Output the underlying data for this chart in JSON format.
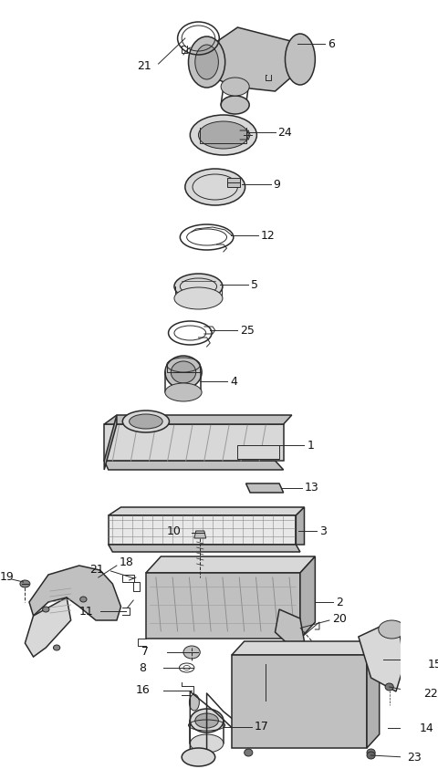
{
  "bg_color": "#ffffff",
  "line_color": "#2a2a2a",
  "label_color": "#111111",
  "figsize": [
    4.8,
    8.43
  ],
  "dpi": 100,
  "xlim": [
    0,
    480
  ],
  "ylim": [
    0,
    843
  ]
}
